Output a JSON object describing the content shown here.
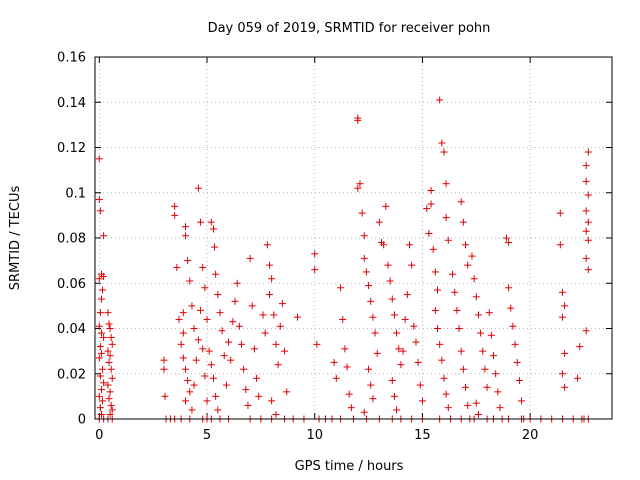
{
  "chart_data": {
    "type": "scatter",
    "title": "Day 059 of 2019, SRMTID for receiver pohn",
    "xlabel": "GPS time / hours",
    "ylabel": "SRMTID / TECUs",
    "xlim": [
      -0.2,
      23.8
    ],
    "ylim": [
      0,
      0.16
    ],
    "x_ticks": [
      0,
      5,
      10,
      15,
      20
    ],
    "x_tick_labels": [
      "0",
      "5",
      "10",
      "15",
      "20"
    ],
    "y_ticks": [
      0,
      0.02,
      0.04,
      0.06,
      0.08,
      0.1,
      0.12,
      0.14,
      0.16
    ],
    "y_tick_labels": [
      "0",
      "0.02",
      "0.04",
      "0.06",
      "0.08",
      "0.1",
      "0.12",
      "0.14",
      "0.16"
    ],
    "grid": true,
    "legend": "none",
    "marker": "+",
    "series": [
      {
        "name": "SRMTID",
        "color": "#e00000",
        "points": [
          [
            0.0,
            0.115
          ],
          [
            0.0,
            0.097
          ],
          [
            0.05,
            0.092
          ],
          [
            0.1,
            0.064
          ],
          [
            0.0,
            0.062
          ],
          [
            0.2,
            0.063
          ],
          [
            0.15,
            0.057
          ],
          [
            0.1,
            0.053
          ],
          [
            0.2,
            0.081
          ],
          [
            0.05,
            0.047
          ],
          [
            0.0,
            0.041
          ],
          [
            0.1,
            0.038
          ],
          [
            0.2,
            0.036
          ],
          [
            0.05,
            0.032
          ],
          [
            0.1,
            0.029
          ],
          [
            0.0,
            0.027
          ],
          [
            0.15,
            0.022
          ],
          [
            0.05,
            0.019
          ],
          [
            0.2,
            0.016
          ],
          [
            0.1,
            0.013
          ],
          [
            0.0,
            0.01
          ],
          [
            0.15,
            0.008
          ],
          [
            0.05,
            0.005
          ],
          [
            0.1,
            0.002
          ],
          [
            0.0,
            0.0
          ],
          [
            0.2,
            0.0
          ],
          [
            0.4,
            0.047
          ],
          [
            0.45,
            0.042
          ],
          [
            0.5,
            0.04
          ],
          [
            0.55,
            0.036
          ],
          [
            0.6,
            0.033
          ],
          [
            0.4,
            0.03
          ],
          [
            0.5,
            0.028
          ],
          [
            0.45,
            0.025
          ],
          [
            0.55,
            0.022
          ],
          [
            0.6,
            0.018
          ],
          [
            0.4,
            0.015
          ],
          [
            0.5,
            0.012
          ],
          [
            0.45,
            0.009
          ],
          [
            0.55,
            0.006
          ],
          [
            0.6,
            0.004
          ],
          [
            0.5,
            0.002
          ],
          [
            0.4,
            0.0
          ],
          [
            0.6,
            0.0
          ],
          [
            3.0,
            0.026
          ],
          [
            3.0,
            0.022
          ],
          [
            3.05,
            0.01
          ],
          [
            3.1,
            0.0
          ],
          [
            3.3,
            0.0
          ],
          [
            3.5,
            0.0
          ],
          [
            3.5,
            0.094
          ],
          [
            3.5,
            0.09
          ],
          [
            3.6,
            0.067
          ],
          [
            3.7,
            0.044
          ],
          [
            3.9,
            0.047
          ],
          [
            3.9,
            0.038
          ],
          [
            3.8,
            0.033
          ],
          [
            4.0,
            0.085
          ],
          [
            4.0,
            0.081
          ],
          [
            4.1,
            0.07
          ],
          [
            4.2,
            0.061
          ],
          [
            4.3,
            0.05
          ],
          [
            4.4,
            0.04
          ],
          [
            3.9,
            0.027
          ],
          [
            4.0,
            0.022
          ],
          [
            4.1,
            0.017
          ],
          [
            4.2,
            0.012
          ],
          [
            4.0,
            0.008
          ],
          [
            3.8,
            0.0
          ],
          [
            4.2,
            0.0
          ],
          [
            4.3,
            0.004
          ],
          [
            4.4,
            0.015
          ],
          [
            4.5,
            0.026
          ],
          [
            4.6,
            0.035
          ],
          [
            4.7,
            0.048
          ],
          [
            4.6,
            0.102
          ],
          [
            4.7,
            0.087
          ],
          [
            4.8,
            0.067
          ],
          [
            4.9,
            0.058
          ],
          [
            5.0,
            0.044
          ],
          [
            4.8,
            0.031
          ],
          [
            4.9,
            0.019
          ],
          [
            5.0,
            0.008
          ],
          [
            4.8,
            0.0
          ],
          [
            5.0,
            0.0
          ],
          [
            5.1,
            0.03
          ],
          [
            5.2,
            0.024
          ],
          [
            5.3,
            0.018
          ],
          [
            5.2,
            0.087
          ],
          [
            5.3,
            0.084
          ],
          [
            5.35,
            0.076
          ],
          [
            5.4,
            0.064
          ],
          [
            5.5,
            0.055
          ],
          [
            5.6,
            0.047
          ],
          [
            5.7,
            0.039
          ],
          [
            5.8,
            0.028
          ],
          [
            5.9,
            0.015
          ],
          [
            5.4,
            0.01
          ],
          [
            5.5,
            0.004
          ],
          [
            5.2,
            0.0
          ],
          [
            5.6,
            0.0
          ],
          [
            6.0,
            0.0
          ],
          [
            6.0,
            0.034
          ],
          [
            6.1,
            0.026
          ],
          [
            6.2,
            0.043
          ],
          [
            6.3,
            0.052
          ],
          [
            6.4,
            0.06
          ],
          [
            6.5,
            0.041
          ],
          [
            6.6,
            0.033
          ],
          [
            6.7,
            0.022
          ],
          [
            6.8,
            0.013
          ],
          [
            6.9,
            0.006
          ],
          [
            7.0,
            0.071
          ],
          [
            7.1,
            0.05
          ],
          [
            7.2,
            0.031
          ],
          [
            7.3,
            0.018
          ],
          [
            7.4,
            0.01
          ],
          [
            7.0,
            0.0
          ],
          [
            7.5,
            0.0
          ],
          [
            7.6,
            0.046
          ],
          [
            7.7,
            0.038
          ],
          [
            7.8,
            0.077
          ],
          [
            7.9,
            0.068
          ],
          [
            7.9,
            0.055
          ],
          [
            8.0,
            0.062
          ],
          [
            8.1,
            0.046
          ],
          [
            8.2,
            0.033
          ],
          [
            8.3,
            0.024
          ],
          [
            8.4,
            0.041
          ],
          [
            8.5,
            0.051
          ],
          [
            8.6,
            0.03
          ],
          [
            8.7,
            0.012
          ],
          [
            8.0,
            0.008
          ],
          [
            8.2,
            0.002
          ],
          [
            8.0,
            0.0
          ],
          [
            8.6,
            0.0
          ],
          [
            9.2,
            0.045
          ],
          [
            9.0,
            0.0
          ],
          [
            9.5,
            0.0
          ],
          [
            10.0,
            0.073
          ],
          [
            10.0,
            0.066
          ],
          [
            10.1,
            0.033
          ],
          [
            10.2,
            0.0
          ],
          [
            10.5,
            0.0
          ],
          [
            10.8,
            0.0
          ],
          [
            10.9,
            0.025
          ],
          [
            11.0,
            0.018
          ],
          [
            11.2,
            0.058
          ],
          [
            11.3,
            0.044
          ],
          [
            11.4,
            0.031
          ],
          [
            11.5,
            0.023
          ],
          [
            11.6,
            0.011
          ],
          [
            11.7,
            0.005
          ],
          [
            11.2,
            0.0
          ],
          [
            11.8,
            0.0
          ],
          [
            12.0,
            0.133
          ],
          [
            12.0,
            0.132
          ],
          [
            12.1,
            0.104
          ],
          [
            12.0,
            0.102
          ],
          [
            12.2,
            0.091
          ],
          [
            12.3,
            0.081
          ],
          [
            12.3,
            0.071
          ],
          [
            12.4,
            0.065
          ],
          [
            12.5,
            0.059
          ],
          [
            12.6,
            0.052
          ],
          [
            12.7,
            0.045
          ],
          [
            12.8,
            0.038
          ],
          [
            12.9,
            0.029
          ],
          [
            12.5,
            0.022
          ],
          [
            12.6,
            0.015
          ],
          [
            12.7,
            0.009
          ],
          [
            12.3,
            0.003
          ],
          [
            12.4,
            0.0
          ],
          [
            13.0,
            0.0
          ],
          [
            13.0,
            0.087
          ],
          [
            13.1,
            0.078
          ],
          [
            13.2,
            0.077
          ],
          [
            13.3,
            0.094
          ],
          [
            13.4,
            0.068
          ],
          [
            13.5,
            0.061
          ],
          [
            13.6,
            0.053
          ],
          [
            13.7,
            0.046
          ],
          [
            13.8,
            0.038
          ],
          [
            13.9,
            0.031
          ],
          [
            14.0,
            0.024
          ],
          [
            13.6,
            0.017
          ],
          [
            13.7,
            0.01
          ],
          [
            13.8,
            0.004
          ],
          [
            13.6,
            0.0
          ],
          [
            14.0,
            0.0
          ],
          [
            14.1,
            0.03
          ],
          [
            14.2,
            0.044
          ],
          [
            14.3,
            0.055
          ],
          [
            14.4,
            0.077
          ],
          [
            14.5,
            0.068
          ],
          [
            14.6,
            0.041
          ],
          [
            14.7,
            0.034
          ],
          [
            14.8,
            0.025
          ],
          [
            14.9,
            0.015
          ],
          [
            15.0,
            0.008
          ],
          [
            14.5,
            0.0
          ],
          [
            15.0,
            0.0
          ],
          [
            15.2,
            0.093
          ],
          [
            15.3,
            0.082
          ],
          [
            15.4,
            0.101
          ],
          [
            15.4,
            0.095
          ],
          [
            15.5,
            0.075
          ],
          [
            15.6,
            0.065
          ],
          [
            15.7,
            0.057
          ],
          [
            15.8,
            0.141
          ],
          [
            15.9,
            0.122
          ],
          [
            16.0,
            0.118
          ],
          [
            16.1,
            0.104
          ],
          [
            16.1,
            0.089
          ],
          [
            16.2,
            0.079
          ],
          [
            15.6,
            0.048
          ],
          [
            15.7,
            0.04
          ],
          [
            15.8,
            0.033
          ],
          [
            15.9,
            0.026
          ],
          [
            16.0,
            0.018
          ],
          [
            16.1,
            0.011
          ],
          [
            16.2,
            0.005
          ],
          [
            15.8,
            0.0
          ],
          [
            16.3,
            0.0
          ],
          [
            16.4,
            0.064
          ],
          [
            16.5,
            0.056
          ],
          [
            16.6,
            0.048
          ],
          [
            16.7,
            0.04
          ],
          [
            16.8,
            0.096
          ],
          [
            16.9,
            0.087
          ],
          [
            17.0,
            0.077
          ],
          [
            17.1,
            0.068
          ],
          [
            16.8,
            0.03
          ],
          [
            16.9,
            0.022
          ],
          [
            17.0,
            0.014
          ],
          [
            17.1,
            0.006
          ],
          [
            16.8,
            0.0
          ],
          [
            17.2,
            0.0
          ],
          [
            17.3,
            0.072
          ],
          [
            17.4,
            0.062
          ],
          [
            17.5,
            0.054
          ],
          [
            17.6,
            0.046
          ],
          [
            17.7,
            0.038
          ],
          [
            17.8,
            0.03
          ],
          [
            17.9,
            0.022
          ],
          [
            18.0,
            0.014
          ],
          [
            17.5,
            0.007
          ],
          [
            17.6,
            0.002
          ],
          [
            17.4,
            0.0
          ],
          [
            18.0,
            0.0
          ],
          [
            18.1,
            0.047
          ],
          [
            18.2,
            0.037
          ],
          [
            18.3,
            0.028
          ],
          [
            18.4,
            0.02
          ],
          [
            18.5,
            0.012
          ],
          [
            18.6,
            0.005
          ],
          [
            18.3,
            0.0
          ],
          [
            18.7,
            0.0
          ],
          [
            18.9,
            0.08
          ],
          [
            19.0,
            0.078
          ],
          [
            19.0,
            0.058
          ],
          [
            19.1,
            0.049
          ],
          [
            19.2,
            0.041
          ],
          [
            19.3,
            0.033
          ],
          [
            19.4,
            0.025
          ],
          [
            19.5,
            0.017
          ],
          [
            19.6,
            0.008
          ],
          [
            19.0,
            0.0
          ],
          [
            19.6,
            0.0
          ],
          [
            19.7,
            0.0
          ],
          [
            20.0,
            0.0
          ],
          [
            20.5,
            0.0
          ],
          [
            21.0,
            0.0
          ],
          [
            21.5,
            0.0
          ],
          [
            21.4,
            0.091
          ],
          [
            21.4,
            0.077
          ],
          [
            21.5,
            0.056
          ],
          [
            21.6,
            0.05
          ],
          [
            21.5,
            0.045
          ],
          [
            21.6,
            0.029
          ],
          [
            21.5,
            0.02
          ],
          [
            21.6,
            0.014
          ],
          [
            22.0,
            0.0
          ],
          [
            22.2,
            0.018
          ],
          [
            22.3,
            0.032
          ],
          [
            22.4,
            0.0
          ],
          [
            22.5,
            0.0
          ],
          [
            22.6,
            0.112
          ],
          [
            22.7,
            0.118
          ],
          [
            22.6,
            0.105
          ],
          [
            22.7,
            0.099
          ],
          [
            22.6,
            0.092
          ],
          [
            22.7,
            0.087
          ],
          [
            22.6,
            0.083
          ],
          [
            22.7,
            0.079
          ],
          [
            22.6,
            0.071
          ],
          [
            22.7,
            0.066
          ],
          [
            22.6,
            0.039
          ],
          [
            22.7,
            0.0
          ]
        ]
      }
    ]
  }
}
